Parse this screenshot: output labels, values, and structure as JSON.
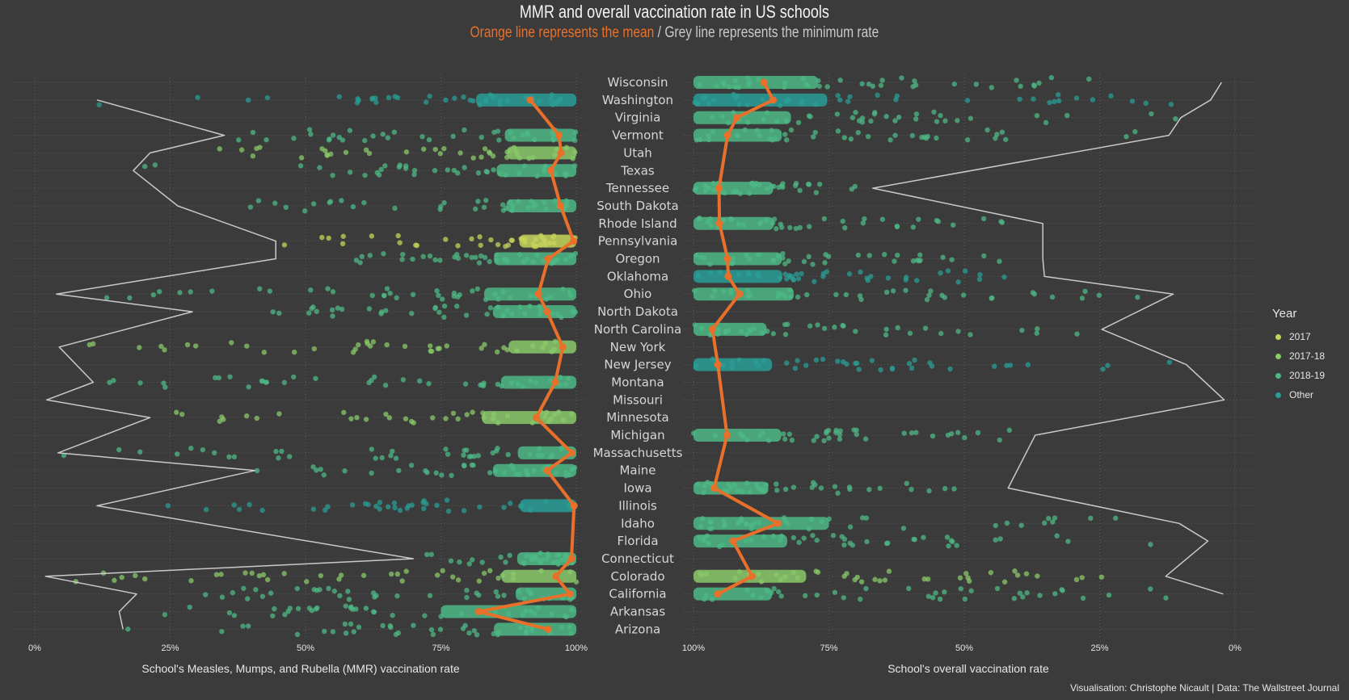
{
  "title": "MMR and overall vaccination rate in US schools",
  "subtitle": {
    "orange": "Orange line represents the mean",
    "separator": " / ",
    "grey": "Grey line represents the minimum rate"
  },
  "caption": "Visualisation: Christophe Nicault | Data: The Wallstreet Journal",
  "colors": {
    "background": "#3b3b3b",
    "mean_line": "#e8702a",
    "min_line": "#c9c9c9",
    "year_2017": "#c6d35a",
    "year_2017_18": "#8ac96a",
    "year_2018_19": "#4db886",
    "year_other": "#2a9e96"
  },
  "legend": {
    "title": "Year",
    "items": [
      "2017",
      "2017-18",
      "2018-19",
      "Other"
    ]
  },
  "chart_data": [
    {
      "type": "scatter",
      "panel": "left",
      "xlabel": "School's Measles, Mumps, and Rubella (MMR) vaccination rate",
      "x_ticks": [
        "0%",
        "25%",
        "50%",
        "75%",
        "100%"
      ],
      "xlim": [
        0,
        100
      ],
      "categories": [
        "Wisconsin",
        "Washington",
        "Virginia",
        "Vermont",
        "Utah",
        "Texas",
        "Tennessee",
        "South Dakota",
        "Rhode Island",
        "Pennsylvania",
        "Oregon",
        "Oklahoma",
        "Ohio",
        "North Dakota",
        "North Carolina",
        "New York",
        "New Jersey",
        "Montana",
        "Missouri",
        "Minnesota",
        "Michigan",
        "Massachusetts",
        "Maine",
        "Iowa",
        "Illinois",
        "Idaho",
        "Florida",
        "Connecticut",
        "Colorado",
        "California",
        "Arkansas",
        "Arizona"
      ],
      "year": [
        null,
        "Other",
        "2018-19",
        "2018-19",
        "2017-18",
        "2018-19",
        null,
        "2018-19",
        null,
        "2017",
        "2018-19",
        null,
        "2018-19",
        "2018-19",
        null,
        "2017-18",
        null,
        "2018-19",
        "Other",
        "2017-18",
        null,
        "2018-19",
        "2018-19",
        null,
        "Other",
        null,
        null,
        "2018-19",
        "2017-18",
        "2018-19",
        "2018-19",
        "2018-19"
      ],
      "mean": [
        null,
        91.5,
        null,
        96.8,
        97.2,
        95.3,
        null,
        97.1,
        null,
        99.5,
        94.8,
        null,
        93.0,
        94.6,
        null,
        97.5,
        null,
        96.1,
        null,
        92.6,
        null,
        99.2,
        94.6,
        null,
        99.6,
        null,
        null,
        99.1,
        96.2,
        98.8,
        82.0,
        94.8
      ],
      "minimum": [
        null,
        11.5,
        null,
        35.0,
        21.3,
        18.2,
        null,
        26.4,
        null,
        44.5,
        44.5,
        null,
        4.0,
        29.1,
        null,
        4.5,
        null,
        10.8,
        2.2,
        21.3,
        null,
        4.3,
        40.7,
        null,
        11.5,
        null,
        null,
        69.9,
        2.0,
        18.8,
        15.6,
        16.3
      ]
    },
    {
      "type": "scatter",
      "panel": "right",
      "xlabel": "School's overall vaccination rate",
      "x_ticks": [
        "100%",
        "75%",
        "50%",
        "25%",
        "0%"
      ],
      "xlim": [
        100,
        0
      ],
      "categories": [
        "Wisconsin",
        "Washington",
        "Virginia",
        "Vermont",
        "Utah",
        "Texas",
        "Tennessee",
        "South Dakota",
        "Rhode Island",
        "Pennsylvania",
        "Oregon",
        "Oklahoma",
        "Ohio",
        "North Dakota",
        "North Carolina",
        "New York",
        "New Jersey",
        "Montana",
        "Missouri",
        "Minnesota",
        "Michigan",
        "Massachusetts",
        "Maine",
        "Iowa",
        "Illinois",
        "Idaho",
        "Florida",
        "Connecticut",
        "Colorado",
        "California",
        "Arkansas",
        "Arizona"
      ],
      "year": [
        "2018-19",
        "Other",
        "2018-19",
        "2018-19",
        null,
        null,
        "2018-19",
        null,
        "2018-19",
        null,
        "2018-19",
        "Other",
        "2018-19",
        null,
        "2018-19",
        null,
        "Other",
        null,
        null,
        null,
        "2018-19",
        null,
        null,
        "2018-19",
        null,
        "2018-19",
        "2018-19",
        null,
        "2017-18",
        "2018-19",
        null,
        null
      ],
      "mean": [
        87.0,
        85.3,
        92.0,
        93.7,
        null,
        null,
        95.3,
        null,
        95.2,
        null,
        93.7,
        93.6,
        91.5,
        null,
        96.5,
        null,
        95.5,
        null,
        null,
        null,
        93.8,
        null,
        null,
        96.2,
        null,
        84.4,
        92.7,
        null,
        89.2,
        95.5,
        null,
        null
      ],
      "minimum": [
        2.5,
        4.5,
        10.0,
        12.2,
        null,
        null,
        66.9,
        null,
        35.5,
        null,
        35.5,
        35.2,
        11.4,
        null,
        24.6,
        null,
        9.0,
        null,
        2.0,
        null,
        36.9,
        null,
        null,
        41.9,
        null,
        10.3,
        5.0,
        null,
        12.8,
        2.2,
        null,
        null
      ]
    }
  ]
}
